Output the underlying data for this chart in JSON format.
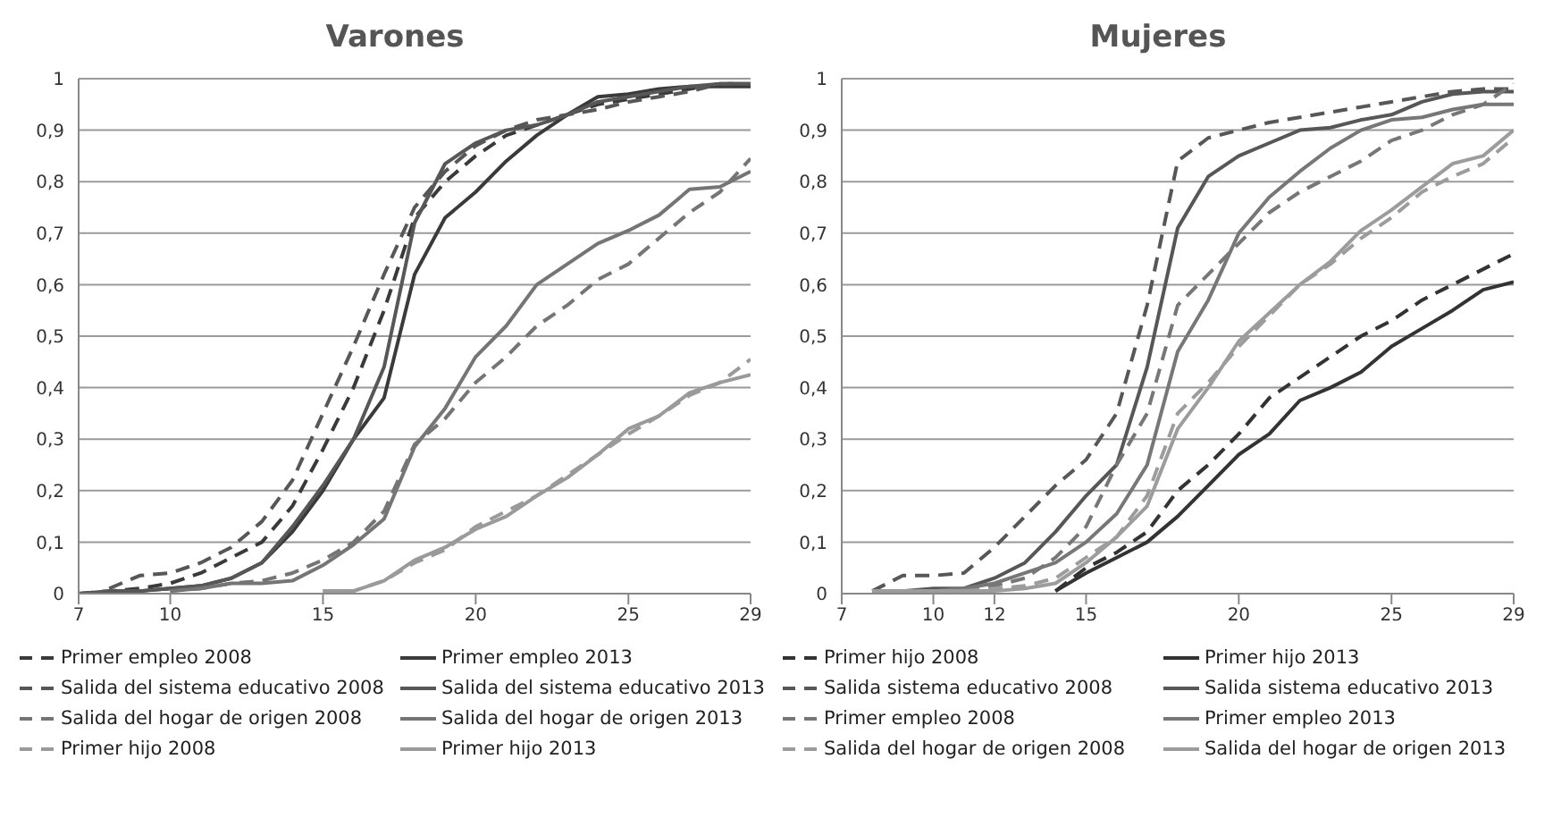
{
  "chart_data": [
    {
      "type": "line",
      "title": "Varones",
      "xlim": [
        7,
        29
      ],
      "xticks": [
        7,
        10,
        15,
        20,
        25,
        29
      ],
      "ylim": [
        0,
        1
      ],
      "yticks": [
        {
          "value": 0,
          "label": "0"
        },
        {
          "value": 0.1,
          "label": "0,1"
        },
        {
          "value": 0.2,
          "label": "0,2"
        },
        {
          "value": 0.3,
          "label": "0,3"
        },
        {
          "value": 0.4,
          "label": "0,4"
        },
        {
          "value": 0.5,
          "label": "0,5"
        },
        {
          "value": 0.6,
          "label": "0,6"
        },
        {
          "value": 0.7,
          "label": "0,7"
        },
        {
          "value": 0.8,
          "label": "0,8"
        },
        {
          "value": 0.9,
          "label": "0,9"
        },
        {
          "value": 1,
          "label": "1"
        }
      ],
      "grid": "y",
      "legend": "bottom",
      "marker": "none",
      "series": [
        {
          "name": "Primer empleo 2008",
          "color": "#3a3a3a",
          "line_style": "dashed",
          "x": [
            7,
            8,
            9,
            10,
            11,
            12,
            13,
            14,
            15,
            16,
            17,
            18,
            19,
            20,
            21,
            22,
            23,
            24,
            25,
            26,
            27,
            28,
            29
          ],
          "values": [
            0,
            0.005,
            0.01,
            0.02,
            0.04,
            0.07,
            0.1,
            0.17,
            0.28,
            0.4,
            0.55,
            0.73,
            0.8,
            0.85,
            0.89,
            0.91,
            0.93,
            0.95,
            0.96,
            0.97,
            0.98,
            0.99,
            0.99
          ]
        },
        {
          "name": "Primer empleo 2013",
          "color": "#3a3a3a",
          "line_style": "solid",
          "x": [
            7,
            8,
            9,
            10,
            11,
            12,
            13,
            14,
            15,
            16,
            17,
            18,
            19,
            20,
            21,
            22,
            23,
            24,
            25,
            26,
            27,
            28,
            29
          ],
          "values": [
            0,
            0,
            0.005,
            0.01,
            0.015,
            0.03,
            0.06,
            0.12,
            0.2,
            0.3,
            0.38,
            0.62,
            0.73,
            0.78,
            0.84,
            0.89,
            0.93,
            0.965,
            0.97,
            0.98,
            0.985,
            0.985,
            0.985
          ]
        },
        {
          "name": "Salida del sistema educativo 2008",
          "color": "#575757",
          "line_style": "dashed",
          "x": [
            8,
            9,
            10,
            11,
            12,
            13,
            14,
            15,
            16,
            17,
            18,
            19,
            20,
            21,
            22,
            23,
            24,
            25,
            26,
            27,
            28,
            29
          ],
          "values": [
            0.01,
            0.035,
            0.04,
            0.06,
            0.09,
            0.14,
            0.22,
            0.35,
            0.48,
            0.62,
            0.75,
            0.82,
            0.87,
            0.9,
            0.92,
            0.93,
            0.94,
            0.955,
            0.965,
            0.975,
            0.99,
            0.99
          ]
        },
        {
          "name": "Salida del sistema educativo 2013",
          "color": "#575757",
          "line_style": "solid",
          "x": [
            7,
            8,
            9,
            10,
            11,
            12,
            13,
            14,
            15,
            16,
            17,
            18,
            19,
            20,
            21,
            22,
            23,
            24,
            25,
            26,
            27,
            28,
            29
          ],
          "values": [
            0,
            0.005,
            0.005,
            0.01,
            0.015,
            0.03,
            0.06,
            0.13,
            0.21,
            0.3,
            0.44,
            0.72,
            0.835,
            0.875,
            0.9,
            0.91,
            0.93,
            0.955,
            0.965,
            0.975,
            0.985,
            0.99,
            0.99
          ]
        },
        {
          "name": "Salida del hogar de origen 2008",
          "color": "#757575",
          "line_style": "dashed",
          "x": [
            10,
            11,
            12,
            13,
            14,
            15,
            16,
            17,
            18,
            19,
            20,
            21,
            22,
            23,
            24,
            25,
            26,
            27,
            28,
            29
          ],
          "values": [
            0.005,
            0.01,
            0.02,
            0.025,
            0.04,
            0.065,
            0.1,
            0.16,
            0.29,
            0.34,
            0.41,
            0.46,
            0.52,
            0.56,
            0.61,
            0.64,
            0.69,
            0.74,
            0.78,
            0.845
          ]
        },
        {
          "name": "Salida del hogar de origen 2013",
          "color": "#757575",
          "line_style": "solid",
          "x": [
            10,
            11,
            12,
            13,
            14,
            15,
            16,
            17,
            18,
            19,
            20,
            21,
            22,
            23,
            24,
            25,
            26,
            27,
            28,
            29
          ],
          "values": [
            0.005,
            0.01,
            0.02,
            0.02,
            0.025,
            0.055,
            0.095,
            0.145,
            0.285,
            0.36,
            0.46,
            0.52,
            0.6,
            0.64,
            0.68,
            0.705,
            0.735,
            0.785,
            0.79,
            0.82
          ]
        },
        {
          "name": "Primer hijo 2008",
          "color": "#9a9a9a",
          "line_style": "dashed",
          "x": [
            15,
            16,
            17,
            18,
            19,
            20,
            21,
            22,
            23,
            24,
            25,
            26,
            27,
            28,
            29
          ],
          "values": [
            0.005,
            0.005,
            0.025,
            0.06,
            0.085,
            0.13,
            0.16,
            0.19,
            0.23,
            0.27,
            0.31,
            0.345,
            0.385,
            0.41,
            0.455
          ]
        },
        {
          "name": "Primer hijo 2013",
          "color": "#9a9a9a",
          "line_style": "solid",
          "x": [
            15,
            16,
            17,
            18,
            19,
            20,
            21,
            22,
            23,
            24,
            25,
            26,
            27,
            28,
            29
          ],
          "values": [
            0.005,
            0.005,
            0.025,
            0.065,
            0.09,
            0.125,
            0.15,
            0.19,
            0.225,
            0.27,
            0.32,
            0.345,
            0.39,
            0.41,
            0.425
          ]
        }
      ]
    },
    {
      "type": "line",
      "title": "Mujeres",
      "xlim": [
        7,
        29
      ],
      "xticks": [
        7,
        10,
        12,
        15,
        20,
        25,
        29
      ],
      "ylim": [
        0,
        1
      ],
      "yticks": [
        {
          "value": 0,
          "label": "0"
        },
        {
          "value": 0.1,
          "label": "0,1"
        },
        {
          "value": 0.2,
          "label": "0,2"
        },
        {
          "value": 0.3,
          "label": "0,3"
        },
        {
          "value": 0.4,
          "label": "0,4"
        },
        {
          "value": 0.5,
          "label": "0,5"
        },
        {
          "value": 0.6,
          "label": "0,6"
        },
        {
          "value": 0.7,
          "label": "0,7"
        },
        {
          "value": 0.8,
          "label": "0,8"
        },
        {
          "value": 0.9,
          "label": "0,9"
        },
        {
          "value": 1,
          "label": "1"
        }
      ],
      "grid": "y",
      "legend": "bottom",
      "marker": "none",
      "series": [
        {
          "name": "Primer hijo 2008",
          "color": "#333333",
          "line_style": "dashed",
          "x": [
            14,
            15,
            16,
            17,
            18,
            19,
            20,
            21,
            22,
            23,
            24,
            25,
            26,
            27,
            28,
            29
          ],
          "values": [
            0.005,
            0.05,
            0.08,
            0.12,
            0.2,
            0.25,
            0.31,
            0.38,
            0.42,
            0.46,
            0.5,
            0.53,
            0.57,
            0.6,
            0.63,
            0.66
          ]
        },
        {
          "name": "Primer hijo 2013",
          "color": "#333333",
          "line_style": "solid",
          "x": [
            14,
            15,
            16,
            17,
            18,
            19,
            20,
            21,
            22,
            23,
            24,
            25,
            26,
            27,
            28,
            29
          ],
          "values": [
            0.005,
            0.04,
            0.07,
            0.1,
            0.15,
            0.21,
            0.27,
            0.31,
            0.375,
            0.4,
            0.43,
            0.48,
            0.515,
            0.55,
            0.59,
            0.605
          ]
        },
        {
          "name": "Salida sistema educativo 2008",
          "color": "#575757",
          "line_style": "dashed",
          "x": [
            8,
            9,
            10,
            11,
            12,
            13,
            14,
            15,
            16,
            17,
            18,
            19,
            20,
            21,
            22,
            23,
            24,
            25,
            26,
            27,
            28,
            29
          ],
          "values": [
            0.005,
            0.035,
            0.035,
            0.04,
            0.09,
            0.15,
            0.21,
            0.26,
            0.35,
            0.56,
            0.84,
            0.885,
            0.9,
            0.915,
            0.925,
            0.935,
            0.945,
            0.955,
            0.965,
            0.975,
            0.98,
            0.98
          ]
        },
        {
          "name": "Salida sistema educativo 2013",
          "color": "#575757",
          "line_style": "solid",
          "x": [
            8,
            9,
            10,
            11,
            12,
            13,
            14,
            15,
            16,
            17,
            18,
            19,
            20,
            21,
            22,
            23,
            24,
            25,
            26,
            27,
            28,
            29
          ],
          "values": [
            0.005,
            0.005,
            0.01,
            0.01,
            0.03,
            0.06,
            0.12,
            0.19,
            0.25,
            0.44,
            0.71,
            0.81,
            0.85,
            0.875,
            0.9,
            0.905,
            0.92,
            0.93,
            0.955,
            0.97,
            0.975,
            0.975
          ]
        },
        {
          "name": "Primer empleo 2008",
          "color": "#777777",
          "line_style": "dashed",
          "x": [
            8,
            9,
            10,
            11,
            12,
            13,
            14,
            15,
            16,
            17,
            18,
            19,
            20,
            21,
            22,
            23,
            24,
            25,
            26,
            27,
            28,
            29
          ],
          "values": [
            0.005,
            0.005,
            0.005,
            0.01,
            0.015,
            0.03,
            0.07,
            0.13,
            0.25,
            0.35,
            0.56,
            0.62,
            0.68,
            0.74,
            0.78,
            0.81,
            0.84,
            0.88,
            0.9,
            0.93,
            0.95,
            0.99
          ]
        },
        {
          "name": "Primer empleo 2013",
          "color": "#777777",
          "line_style": "solid",
          "x": [
            8,
            9,
            10,
            11,
            12,
            13,
            14,
            15,
            16,
            17,
            18,
            19,
            20,
            21,
            22,
            23,
            24,
            25,
            26,
            27,
            28,
            29
          ],
          "values": [
            0.005,
            0.005,
            0.005,
            0.01,
            0.02,
            0.04,
            0.06,
            0.1,
            0.155,
            0.25,
            0.47,
            0.57,
            0.7,
            0.77,
            0.82,
            0.865,
            0.9,
            0.92,
            0.925,
            0.94,
            0.95,
            0.95
          ]
        },
        {
          "name": "Salida del hogar de origen 2008",
          "color": "#9c9c9c",
          "line_style": "dashed",
          "x": [
            8,
            9,
            10,
            11,
            12,
            13,
            14,
            15,
            16,
            17,
            18,
            19,
            20,
            21,
            22,
            23,
            24,
            25,
            26,
            27,
            28,
            29
          ],
          "values": [
            0.005,
            0.005,
            0.005,
            0.005,
            0.01,
            0.015,
            0.03,
            0.07,
            0.11,
            0.19,
            0.35,
            0.41,
            0.48,
            0.54,
            0.6,
            0.64,
            0.69,
            0.73,
            0.78,
            0.81,
            0.835,
            0.885
          ]
        },
        {
          "name": "Salida del hogar de origen 2013",
          "color": "#9c9c9c",
          "line_style": "solid",
          "x": [
            8,
            9,
            10,
            11,
            12,
            13,
            14,
            15,
            16,
            17,
            18,
            19,
            20,
            21,
            22,
            23,
            24,
            25,
            26,
            27,
            28,
            29
          ],
          "values": [
            0.005,
            0.005,
            0.005,
            0.005,
            0.005,
            0.01,
            0.02,
            0.06,
            0.11,
            0.17,
            0.32,
            0.4,
            0.49,
            0.545,
            0.6,
            0.645,
            0.705,
            0.745,
            0.79,
            0.835,
            0.85,
            0.9
          ]
        }
      ]
    }
  ]
}
